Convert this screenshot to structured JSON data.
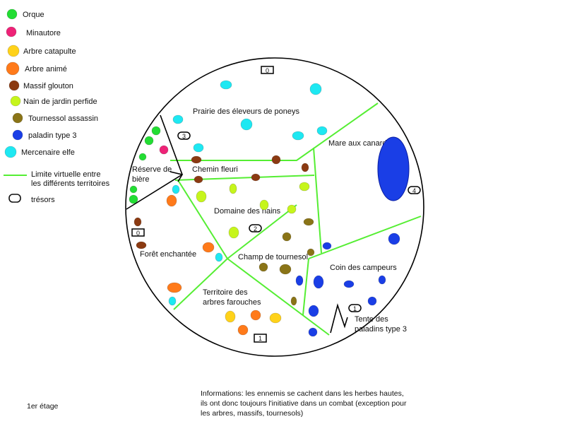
{
  "legend": [
    {
      "label": "Orque",
      "color": "#22dd33",
      "marker": "dot"
    },
    {
      "label": "Minautore",
      "color": "#ee2277",
      "marker": "dot"
    },
    {
      "label": "Arbre catapulte",
      "color": "#ffd21a",
      "marker": "dot"
    },
    {
      "label": "Arbre animé",
      "color": "#ff7a1a",
      "marker": "dot"
    },
    {
      "label": "Massif glouton",
      "color": "#8b3a12",
      "marker": "dot"
    },
    {
      "label": "Nain de jardin perfide",
      "color": "#c6f51c",
      "marker": "dot"
    },
    {
      "label": "Tournessol assassin",
      "color": "#8a7417",
      "marker": "dot"
    },
    {
      "label": "paladin type 3",
      "color": "#1a3ee6",
      "marker": "dot"
    },
    {
      "label": "Mercenaire elfe",
      "color": "#1ee8f2",
      "marker": "dot"
    },
    {
      "label": "Limite virtuelle entre\nles différents territoires",
      "color": "#55ee33",
      "marker": "line"
    },
    {
      "label": "trésors",
      "color": "#111111",
      "marker": "chest"
    }
  ],
  "territories": {
    "prairie": "Prairie des éleveurs de poneys",
    "mare": "Mare aux canards",
    "reserve": "Réserve de\nbière",
    "chemin": "Chemin fleuri",
    "domaine": "Domaine des nains",
    "foret": "Forêt enchantée",
    "champ": "Champ de tournesol",
    "coin": "Coin des campeurs",
    "arbres": "Territoire des\narbres farouches",
    "tente": "Tente des\npaladins type 3"
  },
  "treasures": [
    "0",
    "3",
    "0",
    "4",
    "2",
    "1",
    "1"
  ],
  "info": "Informations: les ennemis se cachent dans les herbes hautes,\nils ont donc toujours l'initiative dans un combat (exception pour\nles arbres, massifs, tournesols)",
  "floor": "1er étage"
}
